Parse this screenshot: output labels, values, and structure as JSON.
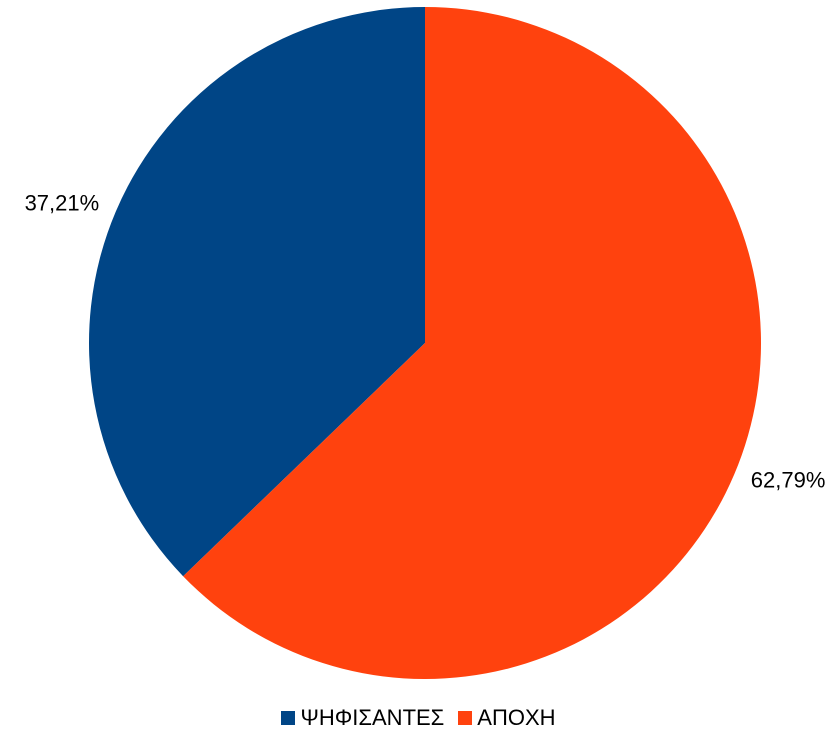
{
  "chart_data": {
    "type": "pie",
    "title": "",
    "legend_position": "bottom",
    "slices": [
      {
        "name": "ΨΗΦΙΣΑΝΤΕΣ",
        "value": 37.21,
        "label": "37,21%",
        "color": "#004586"
      },
      {
        "name": "ΑΠΟΧΗ",
        "value": 62.79,
        "label": "62,79%",
        "color": "#ff420e"
      }
    ]
  }
}
